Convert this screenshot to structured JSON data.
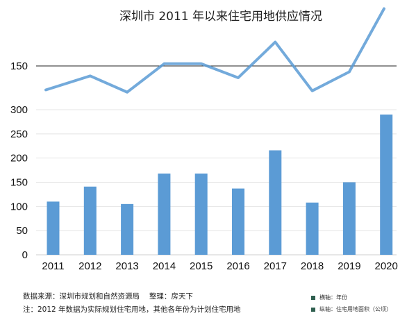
{
  "chart_data": {
    "type": "bar",
    "title": "深圳市 2011 年以来住宅用地供应情况",
    "categories": [
      "2011",
      "2012",
      "2013",
      "2014",
      "2015",
      "2016",
      "2017",
      "2018",
      "2019",
      "2020"
    ],
    "values": [
      110,
      141,
      105,
      168,
      168,
      137,
      216,
      108,
      150,
      290
    ],
    "line_values": [
      110,
      141,
      105,
      168,
      168,
      137,
      216,
      108,
      150,
      290
    ],
    "y_ticks": [
      0,
      50,
      100,
      150,
      200,
      250,
      300
    ],
    "upper_axis_label": "150",
    "ylim": [
      0,
      300
    ],
    "grid": true,
    "bar_color": "#5b9bd5",
    "line_color": "#5b9bd5"
  },
  "footer": {
    "source": "数据来源：深圳市规划和自然资源局　 整理：房天下",
    "note": "注：2012 年数据为实际规划住宅用地，其他各年份为计划住宅用地"
  },
  "legend": {
    "items": [
      {
        "label": "横轴：年份",
        "color": "#2f5f4f"
      },
      {
        "label": "纵轴：住宅用地面积（公顷）",
        "color": "#2f5f4f"
      }
    ]
  }
}
